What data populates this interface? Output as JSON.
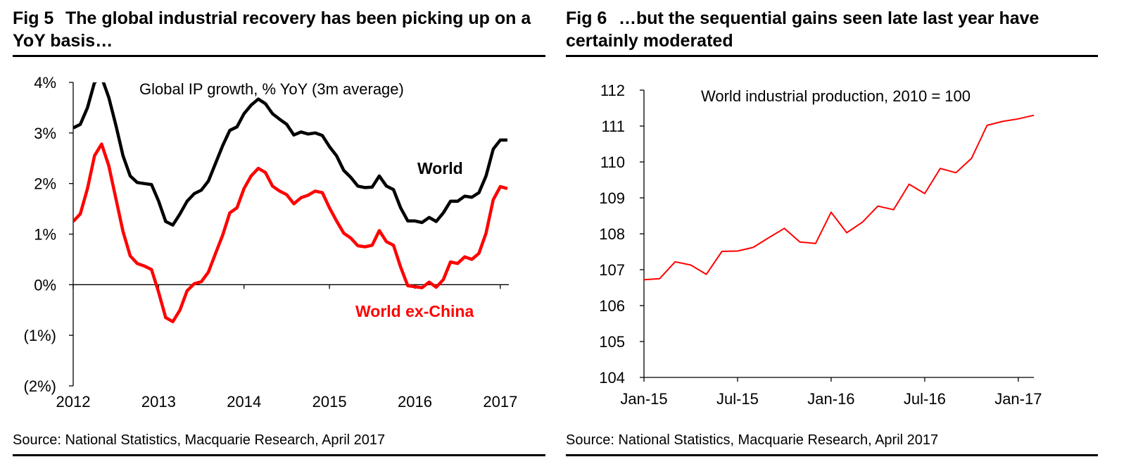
{
  "colors": {
    "world": "#000000",
    "world_ex_china": "#ff0000",
    "axis": "#000000",
    "ip_line": "#ff0000"
  },
  "fig5": {
    "fig_no": "Fig 5",
    "title": "The global industrial recovery has been picking up on a YoY basis…",
    "source": "Source: National Statistics, Macquarie Research, April 2017"
  },
  "fig6": {
    "fig_no": "Fig 6",
    "title": "…but the sequential gains seen late last year have certainly moderated",
    "source": "Source: National Statistics, Macquarie Research, April 2017"
  },
  "chart_data": [
    {
      "type": "line",
      "title": "Global IP growth, % YoY (3m average)",
      "xlabel": "",
      "ylabel": "",
      "xlim": [
        2012.0,
        2017.1
      ],
      "ylim": [
        -2,
        4
      ],
      "ytick_values": [
        -2,
        -1,
        0,
        1,
        2,
        3,
        4
      ],
      "ytick_labels": [
        "(2%)",
        "(1%)",
        "0%",
        "1%",
        "2%",
        "3%",
        "4%"
      ],
      "xtick_values": [
        2012,
        2013,
        2014,
        2015,
        2016,
        2017
      ],
      "xtick_labels": [
        "2012",
        "2013",
        "2014",
        "2015",
        "2016",
        "2017"
      ],
      "grid": false,
      "series": [
        {
          "name": "World",
          "label_text": "World",
          "x": [
            2012.0,
            2012.083,
            2012.167,
            2012.25,
            2012.333,
            2012.417,
            2012.5,
            2012.583,
            2012.667,
            2012.75,
            2012.833,
            2012.917,
            2013.0,
            2013.083,
            2013.167,
            2013.25,
            2013.333,
            2013.417,
            2013.5,
            2013.583,
            2013.667,
            2013.75,
            2013.833,
            2013.917,
            2014.0,
            2014.083,
            2014.167,
            2014.25,
            2014.333,
            2014.417,
            2014.5,
            2014.583,
            2014.667,
            2014.75,
            2014.833,
            2014.917,
            2015.0,
            2015.083,
            2015.167,
            2015.25,
            2015.333,
            2015.417,
            2015.5,
            2015.583,
            2015.667,
            2015.75,
            2015.833,
            2015.917,
            2016.0,
            2016.083,
            2016.167,
            2016.25,
            2016.333,
            2016.417,
            2016.5,
            2016.583,
            2016.667,
            2016.75,
            2016.833,
            2016.917,
            2017.0,
            2017.083
          ],
          "values": [
            3.1,
            3.17,
            3.5,
            4.0,
            4.1,
            3.7,
            3.15,
            2.55,
            2.15,
            2.02,
            2.0,
            1.98,
            1.65,
            1.25,
            1.18,
            1.4,
            1.65,
            1.8,
            1.87,
            2.05,
            2.4,
            2.75,
            3.05,
            3.12,
            3.38,
            3.55,
            3.67,
            3.58,
            3.38,
            3.27,
            3.17,
            2.96,
            3.02,
            2.98,
            3.0,
            2.95,
            2.73,
            2.55,
            2.26,
            2.12,
            1.95,
            1.92,
            1.93,
            2.15,
            1.95,
            1.88,
            1.52,
            1.26,
            1.26,
            1.23,
            1.33,
            1.25,
            1.42,
            1.65,
            1.65,
            1.75,
            1.73,
            1.82,
            2.15,
            2.68,
            2.86,
            2.86
          ]
        },
        {
          "name": "World ex-China",
          "label_text": "World ex-China",
          "x": [
            2012.0,
            2012.083,
            2012.167,
            2012.25,
            2012.333,
            2012.417,
            2012.5,
            2012.583,
            2012.667,
            2012.75,
            2012.833,
            2012.917,
            2013.0,
            2013.083,
            2013.167,
            2013.25,
            2013.333,
            2013.417,
            2013.5,
            2013.583,
            2013.667,
            2013.75,
            2013.833,
            2013.917,
            2014.0,
            2014.083,
            2014.167,
            2014.25,
            2014.333,
            2014.417,
            2014.5,
            2014.583,
            2014.667,
            2014.75,
            2014.833,
            2014.917,
            2015.0,
            2015.083,
            2015.167,
            2015.25,
            2015.333,
            2015.417,
            2015.5,
            2015.583,
            2015.667,
            2015.75,
            2015.833,
            2015.917,
            2016.0,
            2016.083,
            2016.167,
            2016.25,
            2016.333,
            2016.417,
            2016.5,
            2016.583,
            2016.667,
            2016.75,
            2016.833,
            2016.917,
            2017.0,
            2017.083
          ],
          "values": [
            1.25,
            1.4,
            1.9,
            2.55,
            2.78,
            2.35,
            1.7,
            1.05,
            0.57,
            0.42,
            0.37,
            0.3,
            -0.15,
            -0.65,
            -0.73,
            -0.5,
            -0.12,
            0.02,
            0.06,
            0.25,
            0.62,
            0.98,
            1.42,
            1.52,
            1.9,
            2.15,
            2.3,
            2.22,
            1.95,
            1.85,
            1.78,
            1.6,
            1.72,
            1.77,
            1.85,
            1.82,
            1.52,
            1.26,
            1.02,
            0.92,
            0.77,
            0.75,
            0.78,
            1.07,
            0.85,
            0.78,
            0.35,
            -0.02,
            -0.04,
            -0.06,
            0.05,
            -0.05,
            0.1,
            0.45,
            0.42,
            0.55,
            0.5,
            0.62,
            1.02,
            1.68,
            1.94,
            1.9
          ]
        }
      ]
    },
    {
      "type": "line",
      "title": "World industrial production, 2010 = 100",
      "xlabel": "",
      "ylabel": "",
      "categories": [
        "Jan-15",
        "Feb-15",
        "Mar-15",
        "Apr-15",
        "May-15",
        "Jun-15",
        "Jul-15",
        "Aug-15",
        "Sep-15",
        "Oct-15",
        "Nov-15",
        "Dec-15",
        "Jan-16",
        "Feb-16",
        "Mar-16",
        "Apr-16",
        "May-16",
        "Jun-16",
        "Jul-16",
        "Aug-16",
        "Sep-16",
        "Oct-16",
        "Nov-16",
        "Dec-16",
        "Jan-17",
        "Feb-17"
      ],
      "xtick_labels": [
        "Jan-15",
        "Jul-15",
        "Jan-16",
        "Jul-16",
        "Jan-17"
      ],
      "xtick_indices": [
        0,
        6,
        12,
        18,
        24
      ],
      "ylim": [
        104,
        112
      ],
      "ytick_values": [
        104,
        105,
        106,
        107,
        108,
        109,
        110,
        111,
        112
      ],
      "ytick_labels": [
        "104",
        "105",
        "106",
        "107",
        "108",
        "109",
        "110",
        "111",
        "112"
      ],
      "grid": false,
      "series": [
        {
          "name": "World industrial production",
          "values": [
            106.72,
            106.75,
            107.22,
            107.13,
            106.87,
            107.51,
            107.52,
            107.62,
            107.89,
            108.15,
            107.77,
            107.73,
            108.6,
            108.03,
            108.32,
            108.77,
            108.67,
            109.38,
            109.12,
            109.82,
            109.7,
            110.1,
            111.02,
            111.13,
            111.2,
            111.3
          ]
        }
      ]
    }
  ]
}
